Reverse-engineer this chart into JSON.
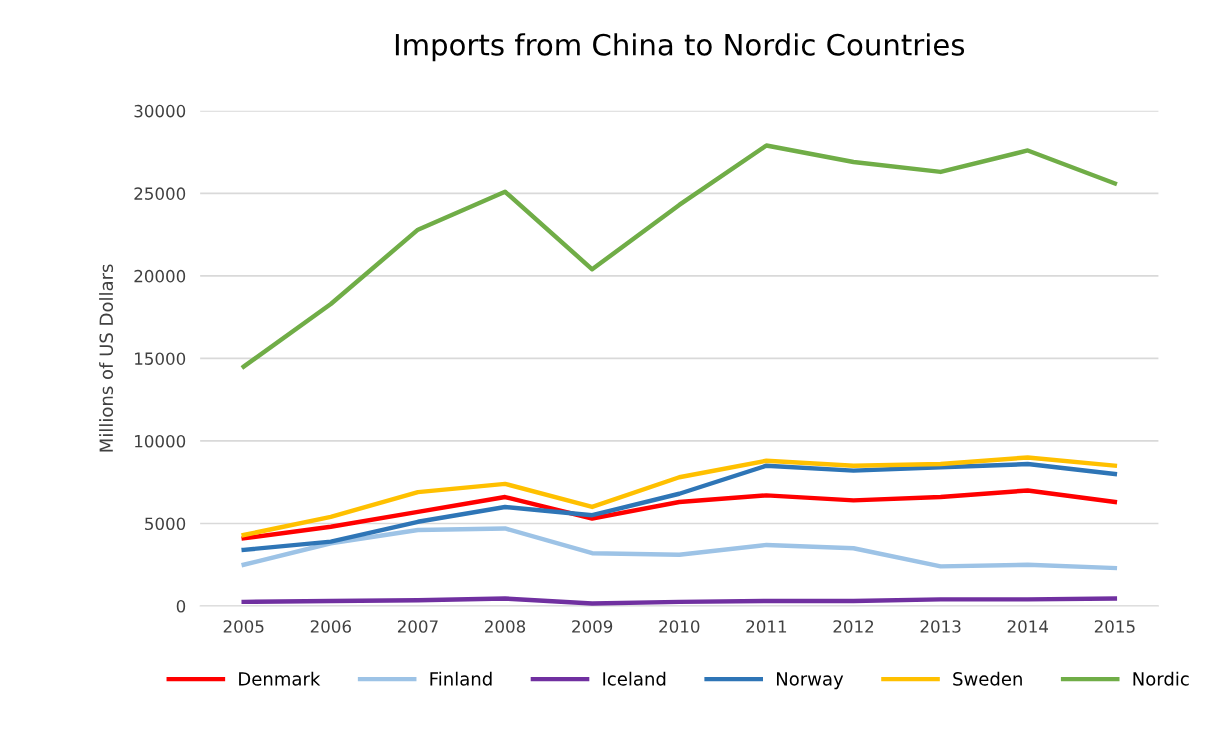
{
  "chart_data": {
    "type": "line",
    "title": "Imports from China to Nordic Countries",
    "ylabel": "Millions of US Dollars",
    "categories": [
      "2005",
      "2006",
      "2007",
      "2008",
      "2009",
      "2010",
      "2011",
      "2012",
      "2013",
      "2014",
      "2015"
    ],
    "series": [
      {
        "name": "Denmark",
        "color": "#ff0000",
        "values": [
          4100,
          4800,
          5700,
          6600,
          5300,
          6300,
          6700,
          6400,
          6600,
          7000,
          6300
        ]
      },
      {
        "name": "Finland",
        "color": "#9dc3e6",
        "values": [
          2500,
          3800,
          4600,
          4700,
          3200,
          3100,
          3700,
          3500,
          2400,
          2500,
          2300
        ]
      },
      {
        "name": "Iceland",
        "color": "#7030a0",
        "values": [
          250,
          300,
          350,
          450,
          150,
          250,
          300,
          300,
          400,
          400,
          450
        ]
      },
      {
        "name": "Norway",
        "color": "#2e75b6",
        "values": [
          3400,
          3900,
          5100,
          6000,
          5500,
          6800,
          8500,
          8200,
          8400,
          8600,
          8000
        ]
      },
      {
        "name": "Sweden",
        "color": "#ffc000",
        "values": [
          4300,
          5400,
          6900,
          7400,
          6000,
          7800,
          8800,
          8500,
          8600,
          9000,
          8500
        ]
      },
      {
        "name": "Nordic",
        "color": "#70ad47",
        "values": [
          14500,
          18300,
          22800,
          25100,
          20400,
          24300,
          27900,
          26900,
          26300,
          27600,
          25600
        ]
      }
    ],
    "ylim": [
      0,
      30000
    ],
    "yticks": [
      0,
      5000,
      10000,
      15000,
      20000,
      25000,
      30000
    ],
    "grid": "y",
    "legend": "bottom",
    "marker": "none",
    "line_style": "solid"
  }
}
